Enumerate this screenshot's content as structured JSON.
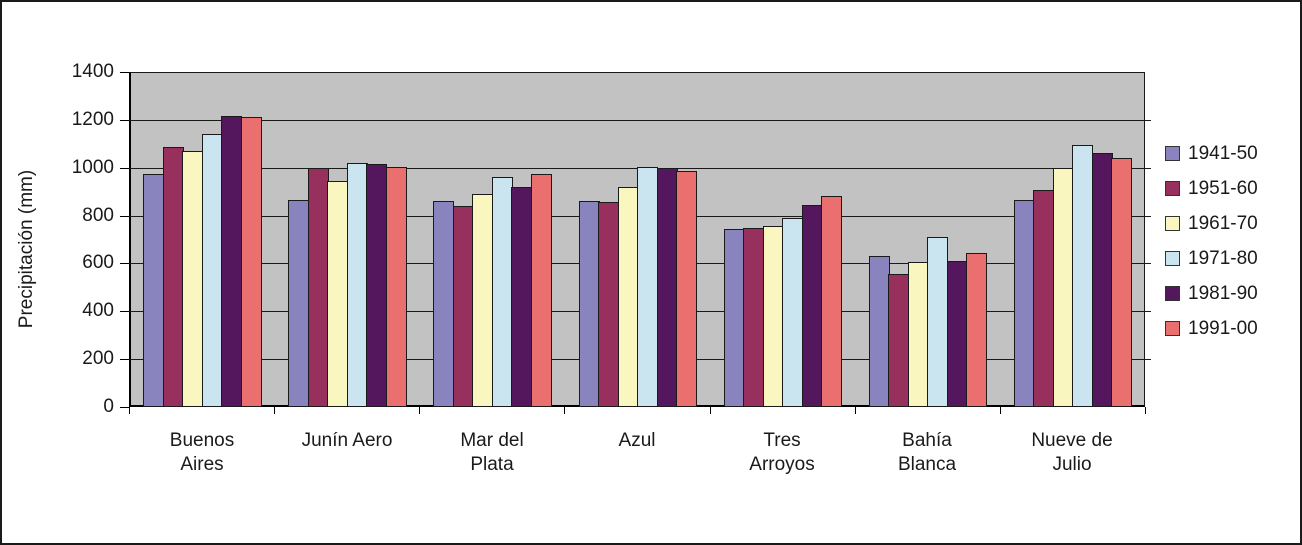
{
  "chart_data": {
    "type": "bar",
    "title": "",
    "xlabel": "",
    "ylabel": "Precipitación (mm)",
    "ylim": [
      0,
      1400
    ],
    "ytick_step": 200,
    "grid": true,
    "legend_position": "right",
    "plot_background": "#c2c2c2",
    "bar_border_color": "#1a1a1a",
    "categories": [
      "Buenos Aires",
      "Junín Aero",
      "Mar del Plata",
      "Azul",
      "Tres Arroyos",
      "Bahía Blanca",
      "Nueve de Julio"
    ],
    "category_label_lines": [
      [
        "Buenos",
        "Aires"
      ],
      [
        "Junín Aero"
      ],
      [
        "Mar del",
        "Plata"
      ],
      [
        "Azul"
      ],
      [
        "Tres",
        "Arroyos"
      ],
      [
        "Bahía",
        "Blanca"
      ],
      [
        "Nueve de",
        "Julio"
      ]
    ],
    "series": [
      {
        "name": "1941-50",
        "color": "#8a84be",
        "values": [
          975,
          865,
          860,
          860,
          745,
          630,
          865
        ]
      },
      {
        "name": "1951-60",
        "color": "#98305e",
        "values": [
          1085,
          1000,
          840,
          855,
          750,
          555,
          905
        ]
      },
      {
        "name": "1961-70",
        "color": "#faf6c0",
        "values": [
          1070,
          945,
          890,
          920,
          755,
          605,
          1000
        ]
      },
      {
        "name": "1971-80",
        "color": "#cbe5f0",
        "values": [
          1140,
          1020,
          960,
          1005,
          790,
          710,
          1095
        ]
      },
      {
        "name": "1981-90",
        "color": "#54175e",
        "values": [
          1215,
          1015,
          920,
          1000,
          845,
          610,
          1060
        ]
      },
      {
        "name": "1991-00",
        "color": "#ea7070",
        "values": [
          1210,
          1005,
          975,
          985,
          880,
          645,
          1040
        ]
      }
    ]
  }
}
